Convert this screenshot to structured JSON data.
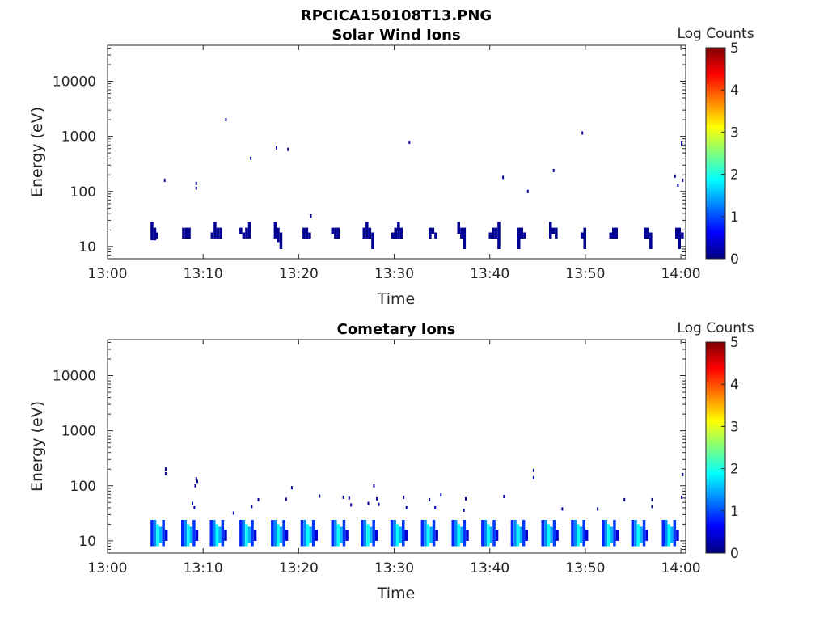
{
  "figure_title": "RPCICA150108T13.PNG",
  "colormap": [
    "#00007f",
    "#0000ff",
    "#007fff",
    "#00ffff",
    "#7fff7f",
    "#ffff00",
    "#ff7f00",
    "#ff0000",
    "#7f0000"
  ],
  "chart_data": [
    {
      "type": "heatmap",
      "title": "Solar Wind Ions",
      "xlabel": "Time",
      "ylabel": "Energy (eV)",
      "y_scale": "log",
      "xlim_minutes": [
        0,
        60.5
      ],
      "ylim": [
        6,
        45000
      ],
      "x_ticks": [
        {
          "min": 0,
          "label": "13:00"
        },
        {
          "min": 10,
          "label": "13:10"
        },
        {
          "min": 20,
          "label": "13:20"
        },
        {
          "min": 30,
          "label": "13:30"
        },
        {
          "min": 40,
          "label": "13:40"
        },
        {
          "min": 50,
          "label": "13:50"
        },
        {
          "min": 60,
          "label": "14:00"
        }
      ],
      "y_ticks": [
        {
          "value": 10,
          "label": "10"
        },
        {
          "value": 100,
          "label": "100"
        },
        {
          "value": 1000,
          "label": "1000"
        },
        {
          "value": 10000,
          "label": "10000"
        }
      ],
      "colorbar": {
        "label": "Log Counts",
        "range": [
          0,
          5
        ],
        "ticks": [
          "0",
          "1",
          "2",
          "3",
          "4",
          "5"
        ]
      },
      "cells": [
        [
          4.5,
          28,
          13,
          0.1
        ],
        [
          4.8,
          22,
          13,
          0.1
        ],
        [
          5.0,
          18,
          14,
          0.1
        ],
        [
          7.8,
          22,
          14,
          0.1
        ],
        [
          8.1,
          22,
          14,
          0.1
        ],
        [
          8.4,
          22,
          14,
          0.1
        ],
        [
          10.8,
          18,
          14,
          0.1
        ],
        [
          11.1,
          28,
          14,
          0.1
        ],
        [
          11.4,
          22,
          14,
          0.1
        ],
        [
          11.7,
          22,
          14,
          0.1
        ],
        [
          13.8,
          22,
          17,
          0.1
        ],
        [
          14.1,
          18,
          14,
          0.1
        ],
        [
          14.4,
          22,
          14,
          0.1
        ],
        [
          14.7,
          28,
          14,
          0.1
        ],
        [
          17.4,
          28,
          14,
          0.1
        ],
        [
          17.7,
          22,
          12,
          0.1
        ],
        [
          18.0,
          18,
          9,
          0.1
        ],
        [
          20.4,
          22,
          14,
          0.1
        ],
        [
          20.7,
          22,
          14,
          0.1
        ],
        [
          21.0,
          18,
          14,
          0.1
        ],
        [
          23.4,
          22,
          17,
          0.1
        ],
        [
          23.7,
          22,
          14,
          0.1
        ],
        [
          24.0,
          22,
          14,
          0.1
        ],
        [
          26.7,
          22,
          14,
          0.1
        ],
        [
          27.0,
          28,
          14,
          0.1
        ],
        [
          27.3,
          22,
          14,
          0.1
        ],
        [
          27.6,
          18,
          9,
          0.1
        ],
        [
          29.7,
          18,
          14,
          0.1
        ],
        [
          30.0,
          22,
          14,
          0.1
        ],
        [
          30.3,
          28,
          14,
          0.1
        ],
        [
          30.6,
          22,
          14,
          0.1
        ],
        [
          33.6,
          22,
          14,
          0.1
        ],
        [
          33.9,
          22,
          17,
          0.1
        ],
        [
          34.2,
          18,
          14,
          0.1
        ],
        [
          36.6,
          28,
          17,
          0.1
        ],
        [
          36.9,
          22,
          14,
          0.1
        ],
        [
          37.2,
          22,
          9,
          0.1
        ],
        [
          39.9,
          18,
          14,
          0.1
        ],
        [
          40.2,
          22,
          14,
          0.1
        ],
        [
          40.5,
          22,
          14,
          0.1
        ],
        [
          40.8,
          28,
          9,
          0.1
        ],
        [
          42.9,
          22,
          9,
          0.1
        ],
        [
          43.2,
          22,
          14,
          0.1
        ],
        [
          43.5,
          18,
          14,
          0.1
        ],
        [
          46.2,
          28,
          14,
          0.1
        ],
        [
          46.5,
          22,
          17,
          0.1
        ],
        [
          46.8,
          22,
          14,
          0.1
        ],
        [
          49.5,
          18,
          14,
          0.1
        ],
        [
          49.8,
          22,
          9,
          0.1
        ],
        [
          52.5,
          18,
          14,
          0.1
        ],
        [
          52.8,
          22,
          14,
          0.1
        ],
        [
          53.1,
          22,
          14,
          0.1
        ],
        [
          56.1,
          22,
          14,
          0.1
        ],
        [
          56.4,
          22,
          14,
          0.1
        ],
        [
          56.7,
          18,
          9,
          0.1
        ],
        [
          59.4,
          22,
          14,
          0.1
        ],
        [
          59.7,
          22,
          9,
          0.1
        ],
        [
          60.0,
          18,
          14,
          0.1
        ]
      ],
      "sparse": [
        [
          5.9,
          160,
          0.1
        ],
        [
          9.2,
          140,
          0.1
        ],
        [
          9.2,
          115,
          0.1
        ],
        [
          12.3,
          2000,
          0.1
        ],
        [
          14.9,
          400,
          0.1
        ],
        [
          17.6,
          620,
          0.1
        ],
        [
          18.8,
          580,
          0.1
        ],
        [
          21.2,
          36,
          0.1
        ],
        [
          31.5,
          780,
          0.1
        ],
        [
          41.3,
          180,
          0.1
        ],
        [
          43.9,
          100,
          0.1
        ],
        [
          46.6,
          240,
          0.1
        ],
        [
          49.6,
          1150,
          0.1
        ],
        [
          59.3,
          190,
          0.1
        ],
        [
          59.6,
          130,
          0.1
        ],
        [
          60.1,
          160,
          0.1
        ],
        [
          60.0,
          700,
          0.1
        ],
        [
          60.0,
          780,
          0.1
        ]
      ]
    },
    {
      "type": "heatmap",
      "title": "Cometary Ions",
      "xlabel": "Time",
      "ylabel": "Energy (eV)",
      "y_scale": "log",
      "xlim_minutes": [
        0,
        60.5
      ],
      "ylim": [
        6,
        45000
      ],
      "x_ticks": [
        {
          "min": 0,
          "label": "13:00"
        },
        {
          "min": 10,
          "label": "13:10"
        },
        {
          "min": 20,
          "label": "13:20"
        },
        {
          "min": 30,
          "label": "13:30"
        },
        {
          "min": 40,
          "label": "13:40"
        },
        {
          "min": 50,
          "label": "13:50"
        },
        {
          "min": 60,
          "label": "14:00"
        }
      ],
      "y_ticks": [
        {
          "value": 10,
          "label": "10"
        },
        {
          "value": 100,
          "label": "100"
        },
        {
          "value": 1000,
          "label": "1000"
        },
        {
          "value": 10000,
          "label": "10000"
        }
      ],
      "colorbar": {
        "label": "Log Counts",
        "range": [
          0,
          5
        ],
        "ticks": [
          "0",
          "1",
          "2",
          "3",
          "4",
          "5"
        ]
      },
      "bursts": [
        4.5,
        7.7,
        10.7,
        13.8,
        17.1,
        20.2,
        23.4,
        26.5,
        29.6,
        32.8,
        36.0,
        39.1,
        42.2,
        45.4,
        48.5,
        51.7,
        54.8,
        58.0
      ],
      "burst_pattern": [
        [
          0.0,
          24,
          8,
          0.8
        ],
        [
          0.3,
          24,
          8,
          1.3
        ],
        [
          0.6,
          20,
          8,
          1.9
        ],
        [
          0.9,
          18,
          9,
          1.5
        ],
        [
          1.2,
          24,
          8,
          0.9
        ],
        [
          1.5,
          16,
          10,
          0.4
        ]
      ],
      "sparse": [
        [
          6.0,
          200,
          0.1
        ],
        [
          6.0,
          165,
          0.1
        ],
        [
          9.2,
          135,
          0.1
        ],
        [
          9.3,
          120,
          0.1
        ],
        [
          9.1,
          100,
          0.1
        ],
        [
          8.8,
          48,
          0.2
        ],
        [
          9.0,
          40,
          0.3
        ],
        [
          13.1,
          32,
          0.2
        ],
        [
          15.0,
          42,
          0.2
        ],
        [
          15.7,
          56,
          0.1
        ],
        [
          18.6,
          57,
          0.1
        ],
        [
          19.2,
          92,
          0.1
        ],
        [
          22.1,
          65,
          0.1
        ],
        [
          24.6,
          62,
          0.1
        ],
        [
          25.2,
          60,
          0.1
        ],
        [
          25.4,
          45,
          0.3
        ],
        [
          27.2,
          48,
          0.1
        ],
        [
          27.8,
          100,
          0.1
        ],
        [
          28.1,
          58,
          0.1
        ],
        [
          28.3,
          46,
          0.1
        ],
        [
          30.9,
          62,
          0.1
        ],
        [
          31.2,
          40,
          0.1
        ],
        [
          33.6,
          56,
          0.1
        ],
        [
          34.2,
          40,
          0.2
        ],
        [
          34.8,
          68,
          0.1
        ],
        [
          37.4,
          58,
          0.1
        ],
        [
          37.2,
          36,
          0.3
        ],
        [
          41.4,
          64,
          0.1
        ],
        [
          44.5,
          190,
          0.1
        ],
        [
          44.5,
          140,
          0.2
        ],
        [
          47.5,
          38,
          0.1
        ],
        [
          51.2,
          38,
          0.1
        ],
        [
          54.0,
          56,
          0.1
        ],
        [
          56.9,
          56,
          0.1
        ],
        [
          56.9,
          42,
          0.1
        ],
        [
          60.1,
          160,
          0.1
        ],
        [
          60.0,
          62,
          0.1
        ]
      ]
    }
  ]
}
